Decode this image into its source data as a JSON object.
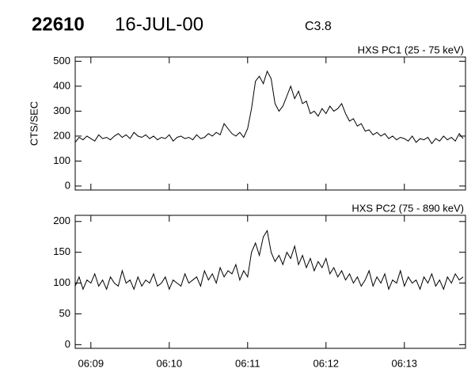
{
  "header": {
    "id": "22610",
    "date": "16-JUL-00",
    "flare_class": "C3.8"
  },
  "chart_data": [
    {
      "type": "line",
      "title": "HXS PC1 (25 - 75 keV)",
      "y_label": "CTS/SEC",
      "color": "#000000",
      "x": [
        8.8,
        8.85,
        8.9,
        8.95,
        9.0,
        9.05,
        9.1,
        9.15,
        9.2,
        9.25,
        9.3,
        9.35,
        9.4,
        9.45,
        9.5,
        9.55,
        9.6,
        9.65,
        9.7,
        9.75,
        9.8,
        9.85,
        9.9,
        9.95,
        10.0,
        10.05,
        10.1,
        10.15,
        10.2,
        10.25,
        10.3,
        10.35,
        10.4,
        10.45,
        10.5,
        10.55,
        10.6,
        10.65,
        10.7,
        10.75,
        10.8,
        10.85,
        10.9,
        10.95,
        11.0,
        11.05,
        11.1,
        11.15,
        11.2,
        11.25,
        11.3,
        11.35,
        11.4,
        11.45,
        11.5,
        11.55,
        11.6,
        11.65,
        11.7,
        11.75,
        11.8,
        11.85,
        11.9,
        11.95,
        12.0,
        12.05,
        12.1,
        12.15,
        12.2,
        12.25,
        12.3,
        12.35,
        12.4,
        12.45,
        12.5,
        12.55,
        12.6,
        12.65,
        12.7,
        12.75,
        12.8,
        12.85,
        12.9,
        12.95,
        13.0,
        13.05,
        13.1,
        13.15,
        13.2,
        13.25,
        13.3,
        13.35,
        13.4,
        13.45,
        13.5,
        13.55,
        13.6,
        13.65,
        13.7,
        13.75
      ],
      "values": [
        175,
        195,
        185,
        200,
        190,
        180,
        205,
        190,
        195,
        185,
        200,
        210,
        195,
        205,
        190,
        215,
        200,
        195,
        205,
        190,
        200,
        185,
        195,
        190,
        205,
        180,
        195,
        200,
        190,
        195,
        185,
        205,
        190,
        195,
        210,
        200,
        215,
        205,
        250,
        230,
        210,
        200,
        215,
        195,
        230,
        310,
        420,
        440,
        410,
        460,
        430,
        330,
        300,
        320,
        360,
        400,
        350,
        380,
        330,
        340,
        290,
        300,
        280,
        310,
        290,
        320,
        300,
        310,
        330,
        290,
        260,
        270,
        240,
        250,
        220,
        225,
        205,
        215,
        200,
        210,
        190,
        200,
        185,
        195,
        190,
        180,
        200,
        175,
        190,
        185,
        195,
        170,
        190,
        180,
        200,
        185,
        195,
        180,
        210,
        190
      ],
      "xlim": [
        8.8,
        13.78
      ],
      "xticks": [
        9,
        10,
        11,
        12,
        13
      ],
      "ylim": [
        -16,
        517
      ],
      "yticks": [
        0,
        100,
        200,
        300,
        400,
        500
      ]
    },
    {
      "type": "line",
      "title": "HXS PC2 (75 - 890 keV)",
      "color": "#000000",
      "x": [
        8.8,
        8.85,
        8.9,
        8.95,
        9.0,
        9.05,
        9.1,
        9.15,
        9.2,
        9.25,
        9.3,
        9.35,
        9.4,
        9.45,
        9.5,
        9.55,
        9.6,
        9.65,
        9.7,
        9.75,
        9.8,
        9.85,
        9.9,
        9.95,
        10.0,
        10.05,
        10.1,
        10.15,
        10.2,
        10.25,
        10.3,
        10.35,
        10.4,
        10.45,
        10.5,
        10.55,
        10.6,
        10.65,
        10.7,
        10.75,
        10.8,
        10.85,
        10.9,
        10.95,
        11.0,
        11.05,
        11.1,
        11.15,
        11.2,
        11.25,
        11.3,
        11.35,
        11.4,
        11.45,
        11.5,
        11.55,
        11.6,
        11.65,
        11.7,
        11.75,
        11.8,
        11.85,
        11.9,
        11.95,
        12.0,
        12.05,
        12.1,
        12.15,
        12.2,
        12.25,
        12.3,
        12.35,
        12.4,
        12.45,
        12.5,
        12.55,
        12.6,
        12.65,
        12.7,
        12.75,
        12.8,
        12.85,
        12.9,
        12.95,
        13.0,
        13.05,
        13.1,
        13.15,
        13.2,
        13.25,
        13.3,
        13.35,
        13.4,
        13.45,
        13.5,
        13.55,
        13.6,
        13.65,
        13.7,
        13.75
      ],
      "values": [
        95,
        110,
        90,
        105,
        100,
        115,
        95,
        105,
        90,
        110,
        100,
        95,
        120,
        100,
        105,
        90,
        110,
        95,
        105,
        100,
        115,
        95,
        100,
        110,
        90,
        105,
        100,
        95,
        115,
        100,
        105,
        110,
        95,
        120,
        105,
        115,
        100,
        125,
        110,
        120,
        115,
        130,
        105,
        120,
        110,
        150,
        165,
        145,
        175,
        185,
        150,
        135,
        145,
        130,
        150,
        140,
        160,
        130,
        145,
        125,
        140,
        120,
        135,
        125,
        140,
        115,
        125,
        110,
        120,
        105,
        115,
        100,
        110,
        95,
        105,
        120,
        95,
        110,
        100,
        115,
        90,
        105,
        100,
        120,
        95,
        110,
        100,
        105,
        90,
        110,
        100,
        115,
        95,
        105,
        90,
        110,
        100,
        115,
        105,
        110
      ],
      "xlim": [
        8.8,
        13.78
      ],
      "xticks": [
        {
          "value": 9,
          "label": "06:09"
        },
        {
          "value": 10,
          "label": "06:10"
        },
        {
          "value": 11,
          "label": "06:11"
        },
        {
          "value": 12,
          "label": "06:12"
        },
        {
          "value": 13,
          "label": "06:13"
        }
      ],
      "ylim": [
        -6,
        210
      ],
      "yticks": [
        0,
        50,
        100,
        150,
        200
      ]
    }
  ]
}
